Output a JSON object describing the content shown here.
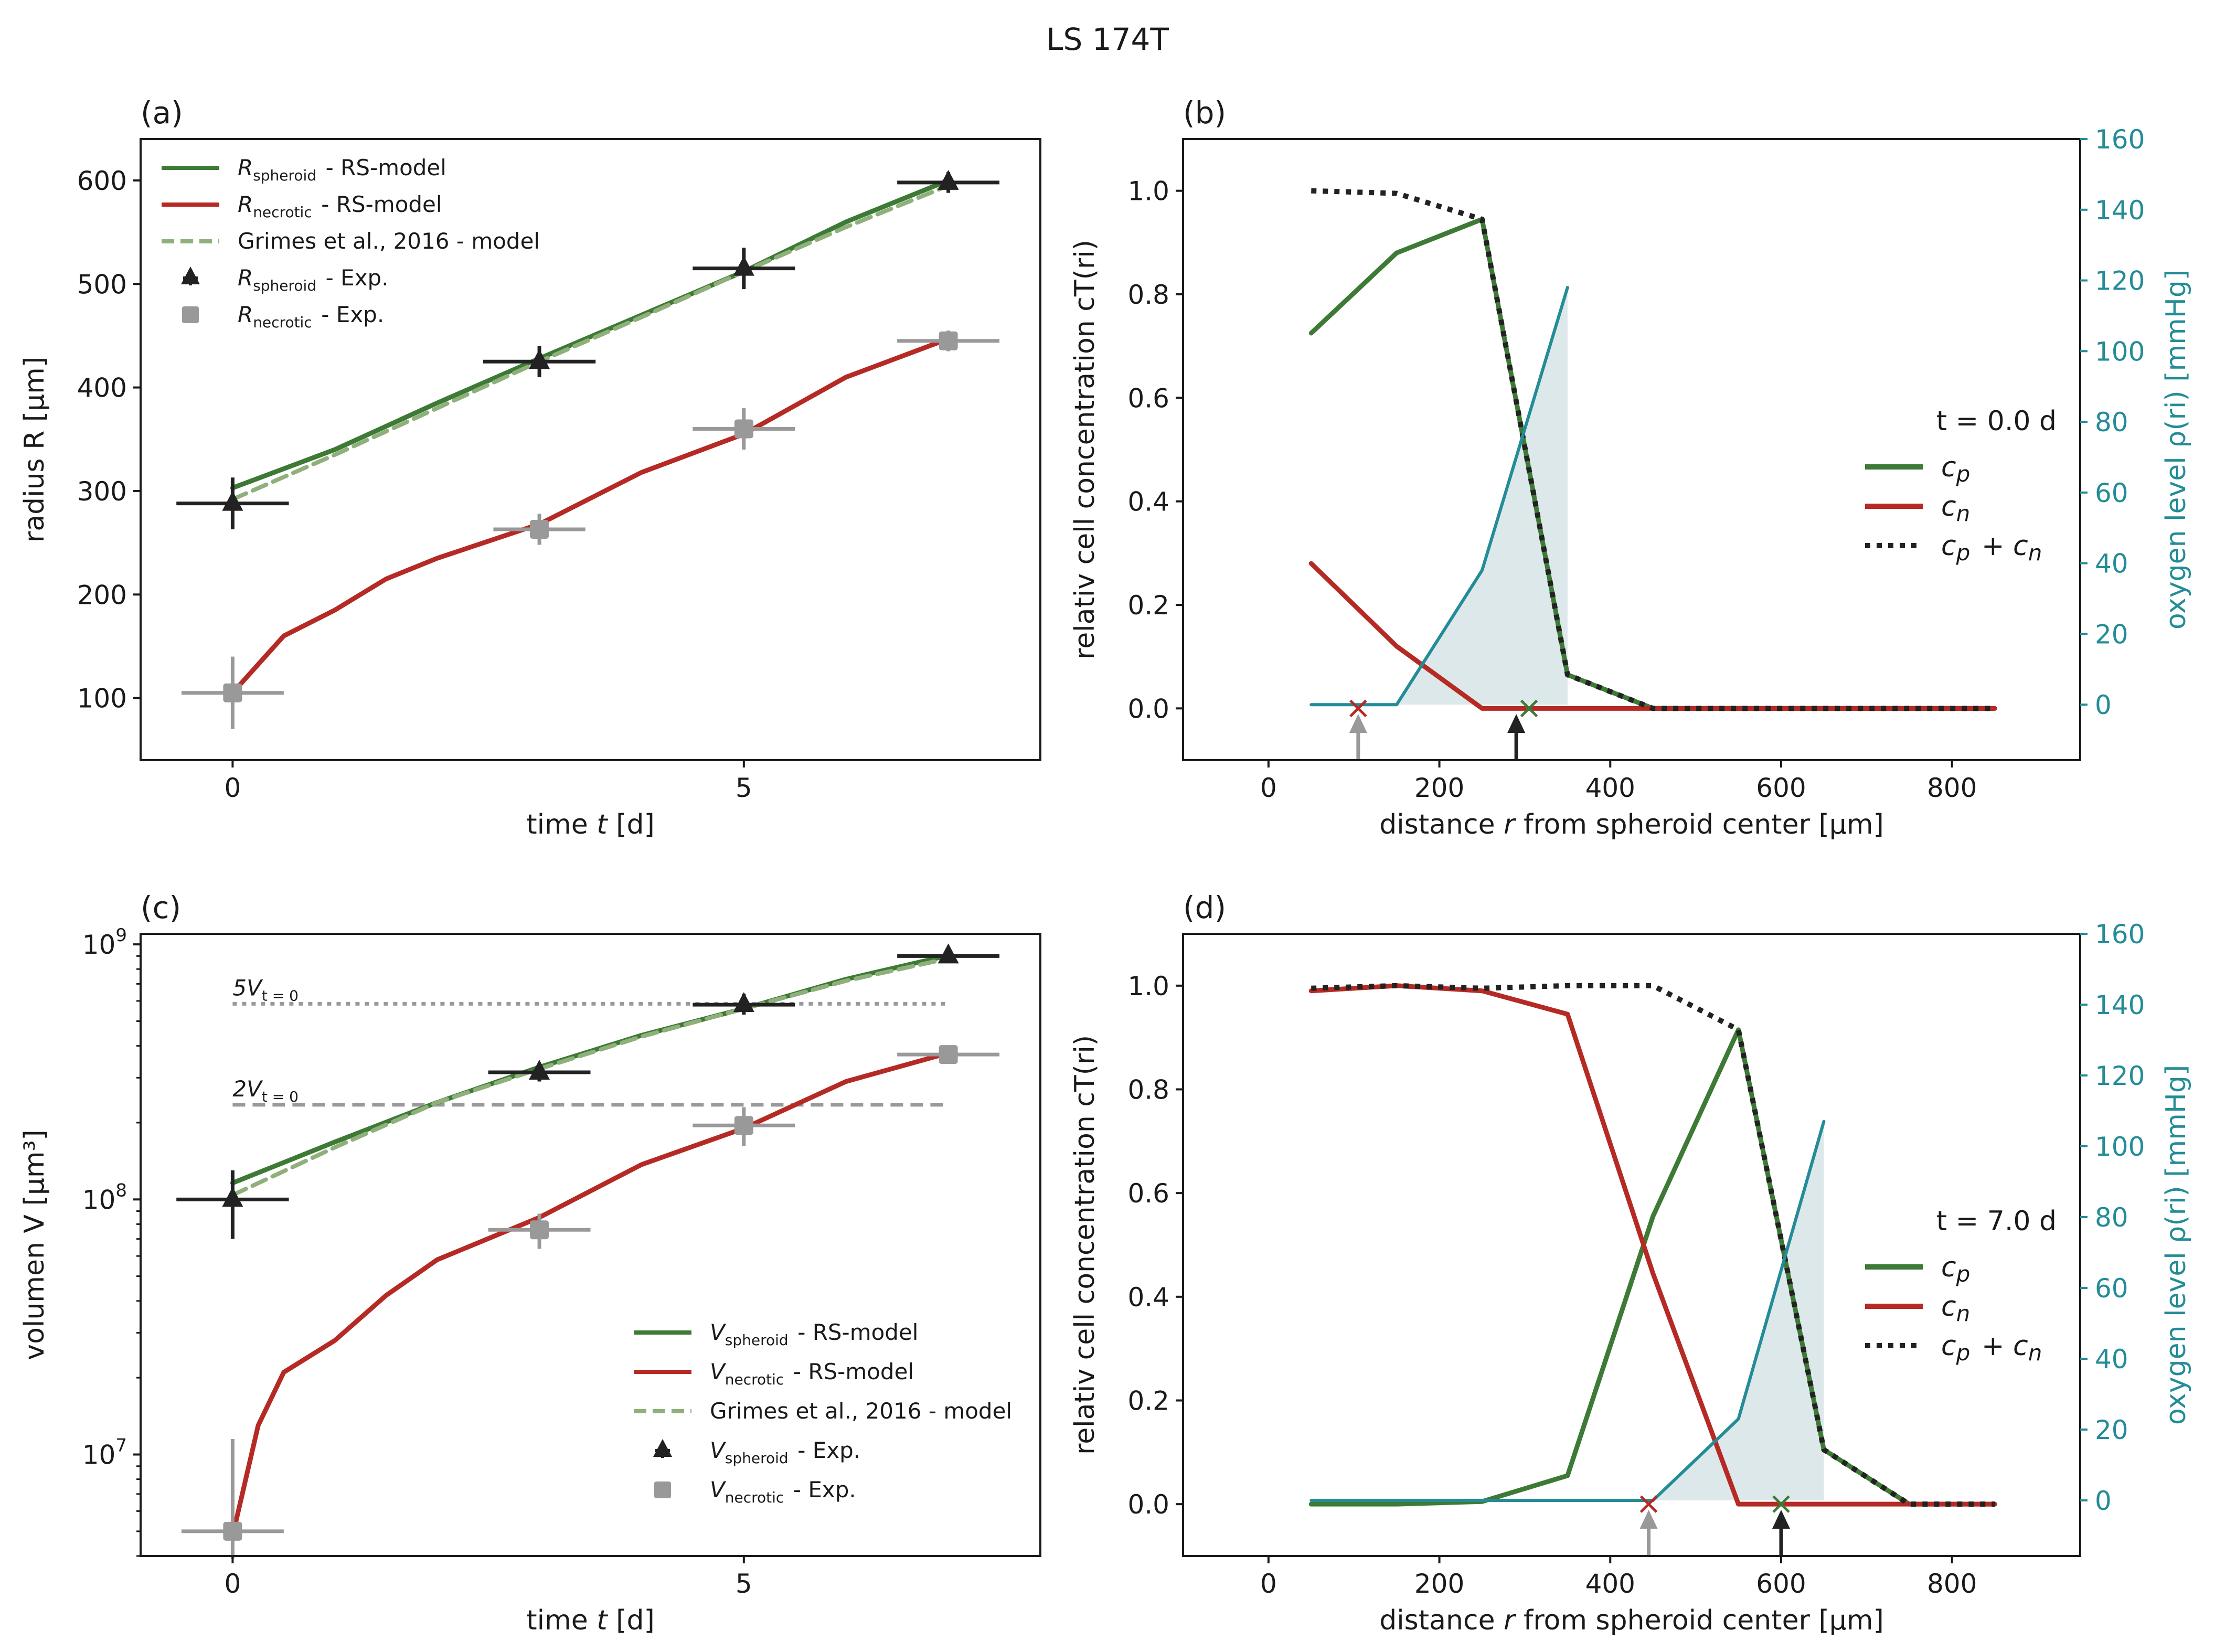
{
  "figure_title": "LS 174T",
  "colors": {
    "green": "#3d7a35",
    "red": "#b52a24",
    "lightgreen": "#8fb07a",
    "black": "#222222",
    "gray": "#999999",
    "teal": "#238c96",
    "shade": "#dde8ea"
  },
  "chart_data": [
    {
      "id": "a",
      "panel_label": "(a)",
      "type": "line",
      "xlabel": "time t [d]",
      "ylabel": "radius R [µm]",
      "xlim": [
        -0.9,
        7.9
      ],
      "ylim": [
        40,
        640
      ],
      "xticks": [
        0,
        5
      ],
      "yticks": [
        100,
        200,
        300,
        400,
        500,
        600
      ],
      "series": [
        {
          "name": "R_spheroid - RS-model",
          "color": "green",
          "style": "solid",
          "x": [
            0,
            1,
            2,
            3,
            4,
            5,
            6,
            7
          ],
          "y": [
            303,
            340,
            385,
            428,
            470,
            512,
            560,
            600
          ]
        },
        {
          "name": "R_necrotic - RS-model",
          "color": "red",
          "style": "solid",
          "x": [
            0,
            0.5,
            1,
            1.5,
            2,
            3,
            4,
            5,
            6,
            7
          ],
          "y": [
            105,
            160,
            185,
            215,
            235,
            268,
            318,
            355,
            410,
            447
          ]
        },
        {
          "name": "Grimes et al., 2016 - model",
          "color": "lightgreen",
          "style": "dashed",
          "x": [
            0,
            1,
            2,
            3,
            4,
            5,
            6,
            7
          ],
          "y": [
            292,
            335,
            380,
            425,
            468,
            512,
            555,
            595
          ]
        }
      ],
      "points": [
        {
          "name": "R_spheroid - Exp.",
          "marker": "triangle",
          "color": "black",
          "x": [
            0,
            3,
            5,
            7
          ],
          "y": [
            288,
            425,
            515,
            598
          ],
          "xerr": [
            0.55,
            0.55,
            0.5,
            0.5
          ],
          "yerr": [
            25,
            15,
            20,
            10
          ]
        },
        {
          "name": "R_necrotic - Exp.",
          "marker": "square",
          "color": "gray",
          "x": [
            0,
            3,
            5,
            7
          ],
          "y": [
            105,
            263,
            360,
            445
          ],
          "xerr": [
            0.5,
            0.45,
            0.5,
            0.5
          ],
          "yerr": [
            35,
            15,
            20,
            10
          ]
        }
      ],
      "legend": {
        "position": "top-left",
        "items": [
          {
            "style": "solid",
            "color": "green",
            "main": "R",
            "sub": "spheroid",
            "rest": " - RS-model"
          },
          {
            "style": "solid",
            "color": "red",
            "main": "R",
            "sub": "necrotic",
            "rest": " - RS-model"
          },
          {
            "style": "dashed",
            "color": "lightgreen",
            "main": "",
            "sub": "",
            "rest": "Grimes et al., 2016 - model"
          },
          {
            "style": "triangle",
            "color": "black",
            "main": "R",
            "sub": "spheroid",
            "rest": " - Exp."
          },
          {
            "style": "square",
            "color": "gray",
            "main": "R",
            "sub": "necrotic",
            "rest": " - Exp."
          }
        ]
      }
    },
    {
      "id": "b",
      "panel_label": "(b)",
      "type": "line",
      "xlabel": "distance r from spheroid center [µm]",
      "ylabel": "relativ cell concentration c_T(r_i)",
      "ylabel2": "oxygen level ρ(r_i) [mmHg]",
      "xlim": [
        -100,
        950
      ],
      "ylim": [
        -0.1,
        1.1
      ],
      "y2lim": [
        -15.7,
        160
      ],
      "xticks": [
        0,
        200,
        400,
        600,
        800
      ],
      "yticks": [
        0.0,
        0.2,
        0.4,
        0.6,
        0.8,
        1.0
      ],
      "y2ticks": [
        0,
        20,
        40,
        60,
        80,
        100,
        120,
        140,
        160
      ],
      "series": [
        {
          "name": "c_p",
          "color": "green",
          "style": "solid",
          "x": [
            50,
            150,
            250,
            350,
            450,
            550,
            650,
            750,
            850
          ],
          "y": [
            0.725,
            0.88,
            0.945,
            0.065,
            0,
            0,
            0,
            0,
            0
          ]
        },
        {
          "name": "c_n",
          "color": "red",
          "style": "solid",
          "x": [
            50,
            150,
            250,
            350,
            450,
            550,
            650,
            750,
            850
          ],
          "y": [
            0.28,
            0.12,
            0,
            0,
            0,
            0,
            0,
            0,
            0
          ]
        },
        {
          "name": "c_p + c_n",
          "color": "black",
          "style": "dotted",
          "x": [
            50,
            150,
            250,
            350,
            450,
            550,
            650,
            750,
            850
          ],
          "y": [
            1.0,
            0.995,
            0.945,
            0.065,
            0,
            0,
            0,
            0,
            0
          ]
        },
        {
          "name": "oxygen",
          "axis": "y2",
          "color": "teal",
          "style": "solid",
          "x": [
            50,
            150,
            250,
            350
          ],
          "y": [
            0,
            0,
            38,
            118
          ]
        }
      ],
      "markers": [
        {
          "type": "cross",
          "color": "red",
          "x": 105,
          "y": 0
        },
        {
          "type": "cross",
          "color": "green",
          "x": 305,
          "y": 0
        },
        {
          "type": "arrow",
          "color": "gray",
          "x": 105
        },
        {
          "type": "arrow",
          "color": "black",
          "x": 290
        }
      ],
      "annotation": "t = 0.0 d",
      "legend": {
        "position": "center-right",
        "items": [
          {
            "style": "solid",
            "color": "green",
            "main": "c",
            "sub": "p",
            "rest": ""
          },
          {
            "style": "solid",
            "color": "red",
            "main": "c",
            "sub": "n",
            "rest": ""
          },
          {
            "style": "dotted",
            "color": "black",
            "main": "c",
            "sub": "p",
            "rest": " + c",
            "sub2": "n"
          }
        ]
      }
    },
    {
      "id": "c",
      "panel_label": "(c)",
      "type": "line",
      "yscale": "log",
      "xlabel": "time t [d]",
      "ylabel": "volumen V [µm³]",
      "xlim": [
        -0.9,
        7.9
      ],
      "ylim": [
        4000000,
        1100000000
      ],
      "xticks": [
        0,
        5
      ],
      "yticks": [
        10000000,
        100000000,
        1000000000
      ],
      "ytick_labels": [
        [
          "10",
          "7"
        ],
        [
          "10",
          "8"
        ],
        [
          "10",
          "9"
        ]
      ],
      "hlines": [
        {
          "label_main": "5V",
          "label_sub": "t = 0",
          "y": 585000000,
          "style": "dotted",
          "color": "gray"
        },
        {
          "label_main": "2V",
          "label_sub": "t = 0",
          "y": 235000000,
          "style": "dashed",
          "color": "gray"
        }
      ],
      "series": [
        {
          "name": "V_spheroid - RS-model",
          "color": "green",
          "style": "solid",
          "x": [
            0,
            1,
            2,
            3,
            4,
            5,
            6,
            7
          ],
          "y": [
            116000000,
            168000000,
            240000000,
            330000000,
            440000000,
            560000000,
            730000000,
            905000000
          ]
        },
        {
          "name": "V_necrotic - RS-model",
          "color": "red",
          "style": "solid",
          "x": [
            0,
            0.25,
            0.5,
            1,
            1.5,
            2,
            3,
            4,
            5,
            6,
            7
          ],
          "y": [
            4800000,
            13000000,
            21000000,
            28000000,
            42000000,
            58000000,
            85000000,
            137000000,
            190000000,
            290000000,
            375000000
          ]
        },
        {
          "name": "Grimes et al., 2016 - model",
          "color": "lightgreen",
          "style": "dashed",
          "x": [
            0,
            1,
            2,
            3,
            4,
            5,
            6,
            7
          ],
          "y": [
            104000000,
            160000000,
            240000000,
            325000000,
            435000000,
            560000000,
            720000000,
            880000000
          ]
        }
      ],
      "points": [
        {
          "name": "V_spheroid - Exp.",
          "marker": "triangle",
          "color": "black",
          "x": [
            0,
            3,
            5,
            7
          ],
          "y": [
            100000000,
            315000000,
            580000000,
            900000000
          ],
          "xerr": [
            0.55,
            0.5,
            0.5,
            0.5
          ],
          "ylo": [
            70000000,
            290000000,
            530000000,
            860000000
          ],
          "yhi": [
            130000000,
            340000000,
            640000000,
            940000000
          ]
        },
        {
          "name": "V_necrotic - Exp.",
          "marker": "square",
          "color": "gray",
          "x": [
            0,
            3,
            5,
            7
          ],
          "y": [
            5000000,
            76000000,
            195000000,
            370000000
          ],
          "xerr": [
            0.5,
            0.5,
            0.5,
            0.5
          ],
          "ylo": [
            3900000,
            64000000,
            162000000,
            340000000
          ],
          "yhi": [
            11500000,
            88000000,
            230000000,
            400000000
          ]
        }
      ],
      "legend": {
        "position": "lower-right",
        "items": [
          {
            "style": "solid",
            "color": "green",
            "main": "V",
            "sub": "spheroid",
            "rest": " - RS-model"
          },
          {
            "style": "solid",
            "color": "red",
            "main": "V",
            "sub": "necrotic",
            "rest": " - RS-model"
          },
          {
            "style": "dashed",
            "color": "lightgreen",
            "main": "",
            "sub": "",
            "rest": "Grimes et al., 2016 - model"
          },
          {
            "style": "triangle",
            "color": "black",
            "main": "V",
            "sub": "spheroid",
            "rest": " - Exp."
          },
          {
            "style": "square",
            "color": "gray",
            "main": "V",
            "sub": "necrotic",
            "rest": " - Exp."
          }
        ]
      }
    },
    {
      "id": "d",
      "panel_label": "(d)",
      "type": "line",
      "xlabel": "distance r from spheroid center [µm]",
      "ylabel": "relativ cell concentration c_T(r_i)",
      "ylabel2": "oxygen level ρ(r_i) [mmHg]",
      "xlim": [
        -100,
        950
      ],
      "ylim": [
        -0.1,
        1.1
      ],
      "y2lim": [
        -15.7,
        160
      ],
      "xticks": [
        0,
        200,
        400,
        600,
        800
      ],
      "yticks": [
        0.0,
        0.2,
        0.4,
        0.6,
        0.8,
        1.0
      ],
      "y2ticks": [
        0,
        20,
        40,
        60,
        80,
        100,
        120,
        140,
        160
      ],
      "series": [
        {
          "name": "c_p",
          "color": "green",
          "style": "solid",
          "x": [
            50,
            150,
            250,
            350,
            450,
            550,
            650,
            750,
            850
          ],
          "y": [
            0,
            0,
            0.005,
            0.055,
            0.555,
            0.915,
            0.105,
            0,
            0
          ]
        },
        {
          "name": "c_n",
          "color": "red",
          "style": "solid",
          "x": [
            50,
            150,
            250,
            350,
            450,
            550,
            650,
            750,
            850
          ],
          "y": [
            0.99,
            1.0,
            0.99,
            0.945,
            0.445,
            0,
            0,
            0,
            0
          ]
        },
        {
          "name": "c_p + c_n",
          "color": "black",
          "style": "dotted",
          "x": [
            50,
            150,
            250,
            350,
            450,
            550,
            650,
            750,
            850
          ],
          "y": [
            0.995,
            1.0,
            0.995,
            1.0,
            1.0,
            0.915,
            0.105,
            0,
            0
          ]
        },
        {
          "name": "oxygen",
          "axis": "y2",
          "color": "teal",
          "style": "solid",
          "x": [
            50,
            150,
            250,
            350,
            450,
            550,
            650
          ],
          "y": [
            0,
            0,
            0,
            0,
            0,
            23,
            107
          ]
        }
      ],
      "markers": [
        {
          "type": "cross",
          "color": "red",
          "x": 445,
          "y": 0
        },
        {
          "type": "cross",
          "color": "green",
          "x": 600,
          "y": 0
        },
        {
          "type": "arrow",
          "color": "gray",
          "x": 445
        },
        {
          "type": "arrow",
          "color": "black",
          "x": 600
        }
      ],
      "annotation": "t = 7.0 d",
      "legend": {
        "position": "center-right",
        "items": [
          {
            "style": "solid",
            "color": "green",
            "main": "c",
            "sub": "p",
            "rest": ""
          },
          {
            "style": "solid",
            "color": "red",
            "main": "c",
            "sub": "n",
            "rest": ""
          },
          {
            "style": "dotted",
            "color": "black",
            "main": "c",
            "sub": "p",
            "rest": " + c",
            "sub2": "n"
          }
        ]
      }
    }
  ]
}
